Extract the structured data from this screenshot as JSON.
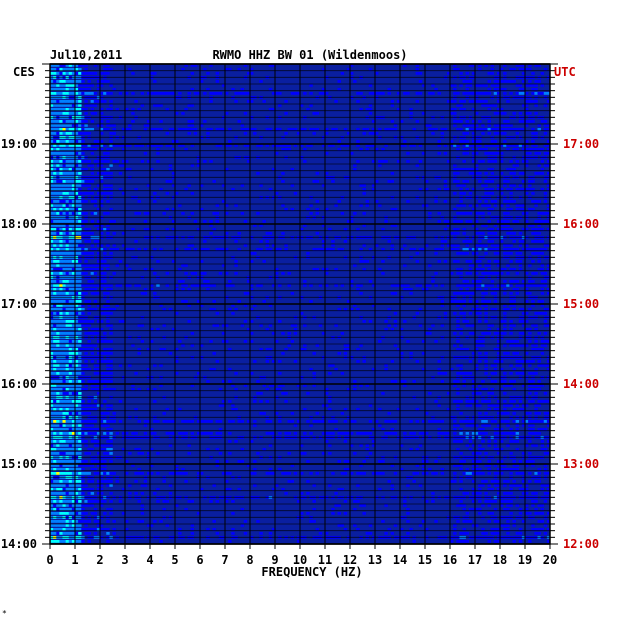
{
  "header": {
    "date": "Jul10,2011",
    "station": "RWMO HHZ BW 01 (Wildenmoos)"
  },
  "corner_mark": "*",
  "chart_data": {
    "type": "heatmap",
    "title": "RWMO HHZ BW 01 (Wildenmoos)",
    "subtitle": "Jul10,2011",
    "xlabel": "FREQUENCY (HZ)",
    "xlim": [
      0,
      20
    ],
    "x_ticks": [
      "0",
      "1",
      "2",
      "3",
      "4",
      "5",
      "6",
      "7",
      "8",
      "9",
      "10",
      "11",
      "12",
      "13",
      "14",
      "15",
      "16",
      "17",
      "18",
      "19",
      "20"
    ],
    "left_axis": {
      "label": "CES",
      "ticks": [
        "14:00",
        "15:00",
        "16:00",
        "17:00",
        "18:00",
        "19:00"
      ],
      "range": [
        "14:00",
        "20:00"
      ]
    },
    "right_axis": {
      "label": "UTC",
      "ticks": [
        "12:00",
        "13:00",
        "14:00",
        "15:00",
        "16:00",
        "17:00"
      ],
      "color": "#cc0000",
      "range": [
        "12:00",
        "18:00"
      ]
    },
    "colormap": [
      "#00008f",
      "#0000ff",
      "#0080ff",
      "#00ffff",
      "#ffff00",
      "#ff8000",
      "#ff0000"
    ],
    "background_color": "#0a1fa0"
  }
}
